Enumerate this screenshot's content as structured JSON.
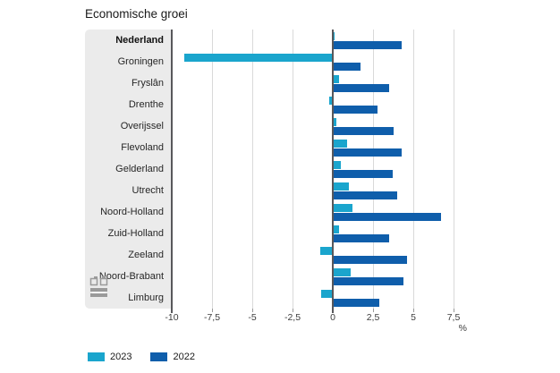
{
  "chart": {
    "title": "Economische groei",
    "unit_label": "%"
  },
  "chart_data": {
    "type": "bar",
    "orientation": "horizontal",
    "title": "Economische groei",
    "xlabel": "%",
    "ylabel": "",
    "xlim": [
      -10,
      9.4
    ],
    "grid": "vertical",
    "legend_position": "bottom-left",
    "bold_category": "Nederland",
    "categories": [
      "Nederland",
      "Groningen",
      "Fryslân",
      "Drenthe",
      "Overijssel",
      "Flevoland",
      "Gelderland",
      "Utrecht",
      "Noord-Holland",
      "Zuid-Holland",
      "Zeeland",
      "Noord-Brabant",
      "Limburg"
    ],
    "series": [
      {
        "name": "2023",
        "color": "#1aa5cd",
        "values": [
          0.1,
          -9.2,
          0.4,
          -0.2,
          0.2,
          0.9,
          0.5,
          1.0,
          1.2,
          0.4,
          -0.8,
          1.1,
          -0.7
        ]
      },
      {
        "name": "2022",
        "color": "#0f5eab",
        "values": [
          4.3,
          1.7,
          3.5,
          2.8,
          3.8,
          4.3,
          3.7,
          4.0,
          6.7,
          3.5,
          4.6,
          4.4,
          2.9
        ]
      }
    ],
    "x_ticks": {
      "values": [
        -10,
        -7.5,
        -5,
        -2.5,
        0,
        2.5,
        5,
        7.5
      ],
      "labels": [
        "-10",
        "-7,5",
        "-5",
        "-2,5",
        "0",
        "2,5",
        "5",
        "7,5"
      ]
    }
  },
  "colors": {
    "series_2023": "#1aa5cd",
    "series_2022": "#0f5eab",
    "label_panel_bg": "#ebebeb",
    "gridline": "#d9d9d9",
    "axis_line": "#58585b",
    "background": "#ffffff"
  }
}
